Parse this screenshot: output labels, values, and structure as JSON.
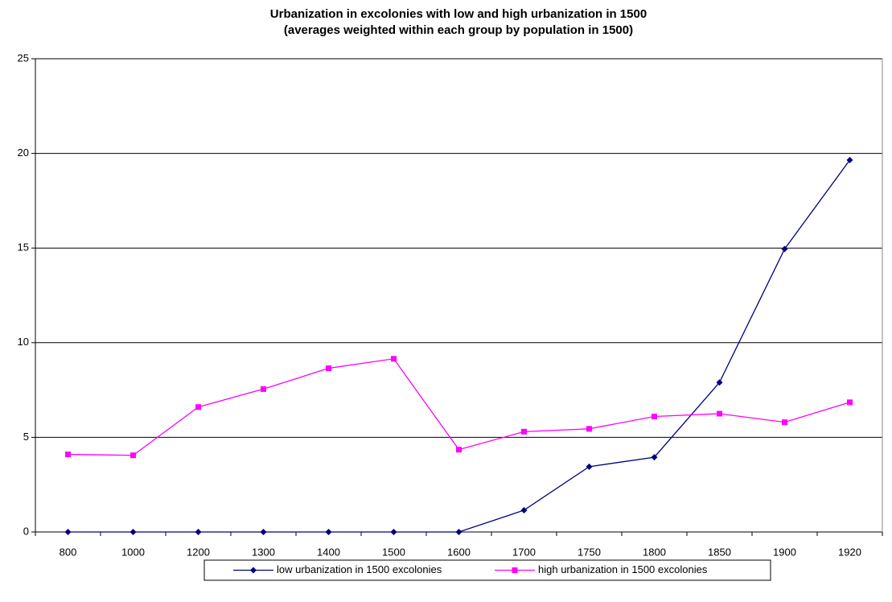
{
  "chart_data": {
    "type": "line",
    "title": [
      "Urbanization in excolonies with low and high urbanization in 1500",
      "(averages weighted within each group by population in 1500)"
    ],
    "categories": [
      "800",
      "1000",
      "1200",
      "1300",
      "1400",
      "1500",
      "1600",
      "1700",
      "1750",
      "1800",
      "1850",
      "1900",
      "1920"
    ],
    "series": [
      {
        "name": "low urbanization in 1500 excolonies",
        "color": "#000080",
        "marker": "diamond",
        "values": [
          0,
          0,
          0,
          0,
          0,
          0,
          0,
          1.15,
          3.45,
          3.95,
          7.9,
          14.95,
          19.65
        ]
      },
      {
        "name": "high urbanization in 1500 excolonies",
        "color": "#ff00ff",
        "marker": "square",
        "values": [
          4.1,
          4.05,
          6.6,
          7.55,
          8.65,
          9.15,
          4.35,
          5.3,
          5.45,
          6.1,
          6.25,
          5.8,
          6.85
        ]
      }
    ],
    "ylim": [
      0,
      25
    ],
    "yticks": [
      0,
      5,
      10,
      15,
      20,
      25
    ],
    "grid": true,
    "legend": "bottom"
  }
}
